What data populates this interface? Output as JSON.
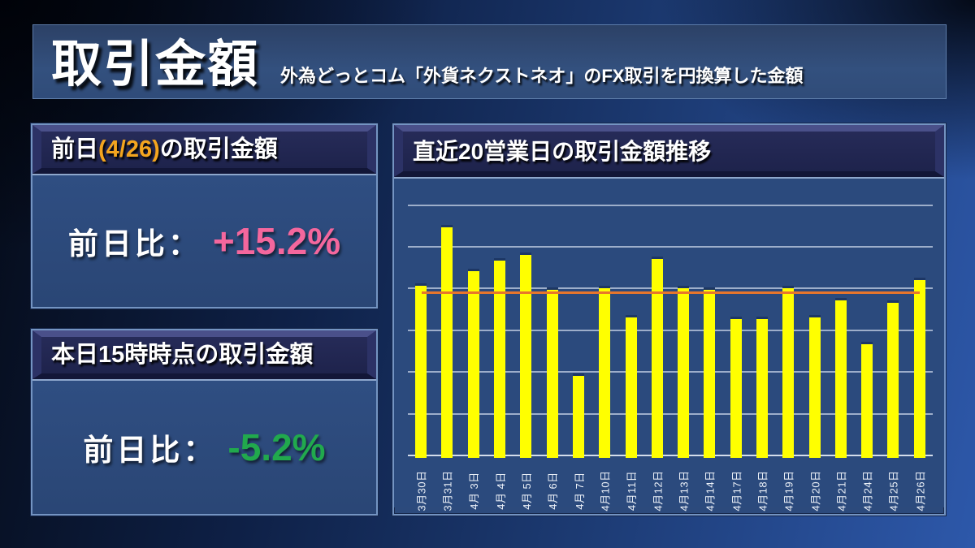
{
  "header": {
    "title": "取引金額",
    "subtitle": "外為どっとコム「外貨ネクストネオ」のFX取引を円換算した金額"
  },
  "panel_yesterday": {
    "title_prefix": "前日",
    "title_date": "(4/26)",
    "title_suffix": "の取引金額",
    "label": "前日比：",
    "value": "+15.2%",
    "value_color": "#F4679D"
  },
  "panel_today": {
    "title": "本日15時時点の取引金額",
    "label": "前日比：",
    "value": "-5.2%",
    "value_color": "#21A94D"
  },
  "chart_panel": {
    "title": "直近20営業日の取引金額推移"
  },
  "chart_data": {
    "type": "bar",
    "title": "直近20営業日の取引金額推移",
    "categories": [
      "3月30日",
      "3月31日",
      "4月 3日",
      "4月 4日",
      "4月 5日",
      "4月 6日",
      "4月 7日",
      "4月10日",
      "4月11日",
      "4月12日",
      "4月13日",
      "4月14日",
      "4月17日",
      "4月18日",
      "4月19日",
      "4月20日",
      "4月21日",
      "4月24日",
      "4月25日",
      "4月26日"
    ],
    "values": [
      4.1,
      5.5,
      4.45,
      4.7,
      4.85,
      4.0,
      1.95,
      4.05,
      3.35,
      4.75,
      4.05,
      4.0,
      3.3,
      3.3,
      4.05,
      3.35,
      3.75,
      2.7,
      3.7,
      4.25
    ],
    "unit_note": "y axis has no tick labels; values measured in gridline units (1 unit = 1 gridline interval, 6 units = top gridline)",
    "ylim": [
      0,
      6
    ],
    "gridlines": true,
    "reference_line": {
      "value": 3.9,
      "color": "#E8762C"
    },
    "bar_color": "#FFFF00",
    "xlabel": "",
    "ylabel": "",
    "legend": null
  },
  "colors": {
    "bar_yellow": "#FFFF00",
    "reference_orange": "#E8762C",
    "positive_pink": "#F4679D",
    "negative_green": "#21A94D",
    "date_accent_orange": "#F3A51F",
    "panel_blue": "#2C4A7C",
    "header_navy": "#1F244E"
  }
}
